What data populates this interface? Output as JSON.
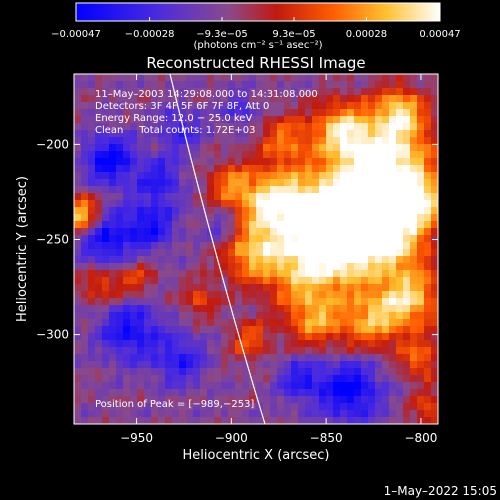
{
  "chart_data": {
    "type": "heatmap",
    "title": "Reconstructed RHESSI Image",
    "xlabel": "Heliocentric X (arcsec)",
    "ylabel": "Heliocentric Y (arcsec)",
    "xlim": [
      -983,
      -791
    ],
    "ylim": [
      -347,
      -163
    ],
    "x_ticks": [
      -950,
      -900,
      -850,
      -800
    ],
    "x_tick_labels": [
      "−950",
      "−900",
      "−850",
      "−800"
    ],
    "y_ticks": [
      -200,
      -250,
      -300
    ],
    "y_tick_labels": [
      "−200",
      "−250",
      "−300"
    ],
    "colorbar": {
      "range": [
        -0.00047,
        0.00047
      ],
      "ticks": [
        -0.00047,
        -0.00028,
        -9.3e-05,
        9.3e-05,
        0.00028,
        0.00047
      ],
      "tick_labels": [
        "−0.00047",
        "−0.00028",
        "−9.3e−05",
        "9.3e−05",
        "0.00028",
        "0.00047"
      ],
      "unit_label": "(photons cm⁻² s⁻¹ asec⁻²)",
      "colors": [
        "#0000ff",
        "#5a2ad0",
        "#8a4a8a",
        "#c01a10",
        "#ff6000",
        "#ffd030",
        "#ffffff"
      ]
    },
    "annotations": [
      "11–May–2003 14:29:08.000 to 14:31:08.000",
      "Detectors: 3F 4F 5F 6F 7F 8F, Att 0",
      "Energy Range: 12.0 − 25.0 keV",
      "Clean     Total counts: 1.72E+03"
    ],
    "peak_label": "Position of Peak = [−989,−253]",
    "peak_position": [
      -989,
      -253
    ],
    "grid": false
  },
  "footer_timestamp": "1–May–2022 15:05"
}
